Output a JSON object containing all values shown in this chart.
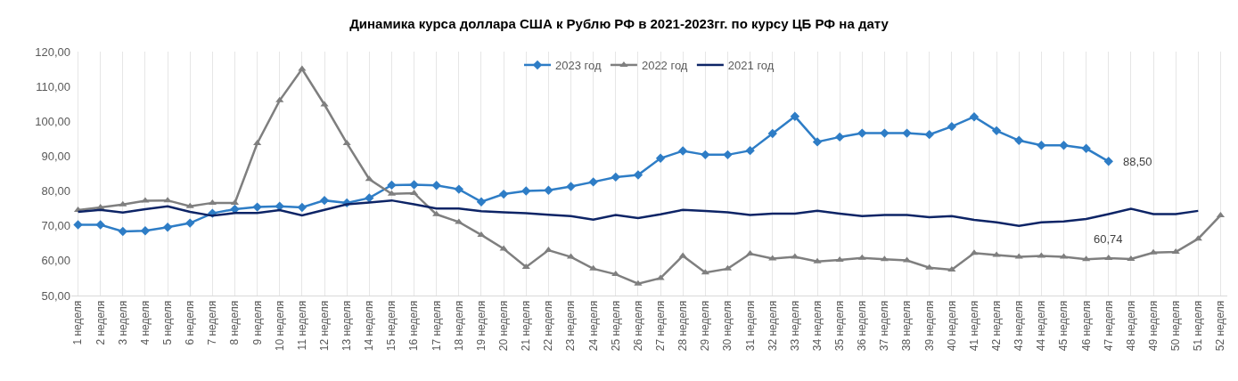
{
  "chart_data": {
    "type": "line",
    "title": "Динамика курса доллара США к Рублю РФ в 2021-2023гг. по курсу ЦБ РФ на дату",
    "categories": [
      "1 неделя",
      "2 неделя",
      "3 неделя",
      "4 неделя",
      "5 неделя",
      "6 неделя",
      "7 неделя",
      "8 неделя",
      "9 неделя",
      "10 неделя",
      "11 неделя",
      "12 неделя",
      "13 неделя",
      "14 неделя",
      "15 неделя",
      "16 неделя",
      "17 неделя",
      "18 неделя",
      "19 неделя",
      "20 неделя",
      "21 неделя",
      "22 неделя",
      "23 неделя",
      "24 неделя",
      "25 неделя",
      "26 неделя",
      "27 неделя",
      "28 неделя",
      "29 неделя",
      "30 неделя",
      "31 неделя",
      "32 неделя",
      "33 неделя",
      "34 неделя",
      "35 неделя",
      "36 неделя",
      "37 неделя",
      "38 неделя",
      "39 неделя",
      "40 неделя",
      "41 неделя",
      "42 неделя",
      "43 неделя",
      "44 неделя",
      "45 неделя",
      "46 неделя",
      "47 неделя",
      "48 неделя",
      "49 неделя",
      "50 неделя",
      "51 неделя",
      "52 неделя"
    ],
    "series": [
      {
        "name": "2023 год",
        "color": "#2e7dc6",
        "marker": "diamond",
        "values": [
          70.3,
          70.3,
          68.4,
          68.6,
          69.6,
          70.8,
          73.6,
          74.8,
          75.4,
          75.6,
          75.3,
          77.3,
          76.6,
          78.0,
          81.7,
          81.8,
          81.6,
          80.5,
          76.9,
          79.1,
          80.0,
          80.2,
          81.3,
          82.6,
          84.0,
          84.6,
          89.4,
          91.5,
          90.4,
          90.4,
          91.6,
          96.5,
          101.4,
          94.1,
          95.5,
          96.6,
          96.6,
          96.6,
          96.2,
          98.5,
          101.3,
          97.3,
          94.5,
          93.1,
          93.1,
          92.2,
          88.5,
          null,
          null,
          null,
          null,
          null
        ]
      },
      {
        "name": "2022 год",
        "color": "#7f7f7f",
        "marker": "triangle",
        "values": [
          74.5,
          75.3,
          76.1,
          77.2,
          77.3,
          75.6,
          76.6,
          76.6,
          93.7,
          106.0,
          115.0,
          104.8,
          93.7,
          83.4,
          79.2,
          79.4,
          73.3,
          71.1,
          67.4,
          63.4,
          58.2,
          63.0,
          61.1,
          57.7,
          56.1,
          53.4,
          55.0,
          61.4,
          56.6,
          57.7,
          62.0,
          60.6,
          61.1,
          59.8,
          60.2,
          60.8,
          60.4,
          60.1,
          58.0,
          57.4,
          62.2,
          61.6,
          61.1,
          61.4,
          61.1,
          60.4,
          60.74,
          60.5,
          62.3,
          62.5,
          66.3,
          73.0
        ]
      },
      {
        "name": "2021 год",
        "color": "#0d2466",
        "marker": "none",
        "values": [
          74.0,
          74.6,
          73.8,
          74.8,
          75.6,
          74.0,
          72.9,
          73.7,
          73.7,
          74.5,
          73.0,
          74.6,
          76.2,
          76.7,
          77.3,
          76.2,
          75.0,
          75.0,
          74.2,
          73.9,
          73.6,
          73.2,
          72.8,
          71.8,
          73.1,
          72.2,
          73.3,
          74.6,
          74.3,
          73.9,
          73.1,
          73.5,
          73.5,
          74.3,
          73.5,
          72.8,
          73.1,
          73.1,
          72.5,
          72.8,
          71.7,
          71.0,
          70.0,
          71.0,
          71.3,
          72.0,
          73.4,
          74.9,
          73.4,
          73.4,
          74.3,
          null
        ]
      }
    ],
    "ylim": [
      50,
      120
    ],
    "yticks": [
      {
        "value": 50,
        "label": "50,00"
      },
      {
        "value": 60,
        "label": "60,00"
      },
      {
        "value": 70,
        "label": "70,00"
      },
      {
        "value": 80,
        "label": "80,00"
      },
      {
        "value": 90,
        "label": "90,00"
      },
      {
        "value": 100,
        "label": "100,00"
      },
      {
        "value": 110,
        "label": "110,00"
      },
      {
        "value": 120,
        "label": "120,00"
      }
    ],
    "annotations": [
      {
        "text": "88,50",
        "x": "47 неделя",
        "y": 88.5
      },
      {
        "text": "60,74",
        "x": "47 неделя",
        "y": 60.74
      }
    ],
    "grid": "x",
    "legend": "top",
    "line_style": "solid"
  }
}
